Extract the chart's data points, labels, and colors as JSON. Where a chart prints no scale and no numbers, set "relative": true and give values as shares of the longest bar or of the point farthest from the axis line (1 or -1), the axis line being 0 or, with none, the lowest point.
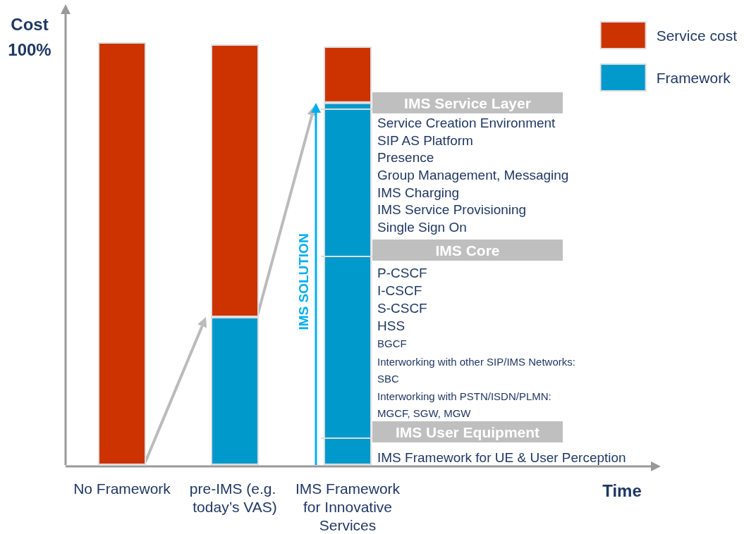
{
  "chart_data": {
    "type": "bar",
    "stacked": true,
    "relative": true,
    "ylabel": "Cost",
    "legend": "top right",
    "categories": [
      "No Framework",
      "pre-IMS (e.g. today’s VAS)",
      "IMS Framework for Innovative Services"
    ],
    "series": [
      {
        "name": "Framework",
        "color": "#0099cc",
        "values": [
          0,
          0.35,
          0.857
        ]
      },
      {
        "name": "Service cost",
        "color": "#cc3300",
        "values": [
          1,
          0.645,
          0.133
        ]
      }
    ],
    "annotations": [
      "100%",
      "IMS Service Layer",
      "Service Creation Environment",
      "SIP AS Platform",
      "Presence",
      "Group Management, Messaging",
      "IMS Charging",
      "IMS Service Provisioning",
      "Single Sign On",
      "IMS Core",
      "P-CSCF",
      "I-CSCF",
      "S-CSCF",
      "HSS",
      "BGCF",
      "Interworking with other SIP/IMS Networks:",
      "SBC",
      "Interworking with PSTN/ISDN/PLMN:",
      "MGCF, SGW, MGW",
      "IMS User Equipment",
      "IMS Framework for UE & User Perception",
      "IMS SOLUTION",
      "Time"
    ]
  }
}
